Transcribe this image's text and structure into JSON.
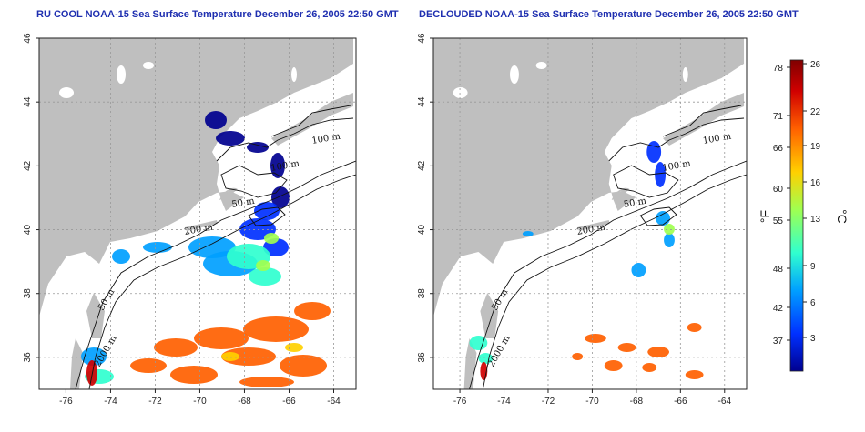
{
  "panels": [
    {
      "title": "RU COOL NOAA-15 Sea Surface Temperature December 26, 2005 22:50 GMT",
      "contour_labels": [
        "100 m",
        "100 m",
        "50 m",
        "200 m",
        "50 m",
        "2000 m"
      ]
    },
    {
      "title": "DECLOUDED NOAA-15 Sea Surface Temperature December 26, 2005 22:50 GMT",
      "contour_labels": [
        "100 m",
        "100 m",
        "50 m",
        "200 m",
        "50 m",
        "2000 m"
      ]
    }
  ],
  "map_axes": {
    "lon_ticks": [
      "-76",
      "-74",
      "-72",
      "-70",
      "-68",
      "-66",
      "-64"
    ],
    "lat_ticks": [
      "36",
      "38",
      "40",
      "42",
      "44",
      "46"
    ],
    "lon_range": [
      -77.2,
      -63.0
    ],
    "lat_range": [
      35.0,
      46.0
    ],
    "grid": "dotted"
  },
  "colorbar": {
    "fahrenheit_label": "°F",
    "celsius_label": "°C",
    "fahrenheit_ticks": [
      "78",
      "71",
      "66",
      "60",
      "55",
      "48",
      "42",
      "37"
    ],
    "celsius_ticks": [
      "26",
      "22",
      "19",
      "16",
      "13",
      "9",
      "6",
      "3"
    ],
    "colors": [
      "#00008f",
      "#0030ff",
      "#00a0ff",
      "#30ffcf",
      "#a0ff50",
      "#ffd000",
      "#ff6000",
      "#d00000",
      "#800000"
    ]
  },
  "colors": {
    "land": "#bfbfbf",
    "ocean": "#ffffff",
    "title": "#1f2fb0"
  }
}
